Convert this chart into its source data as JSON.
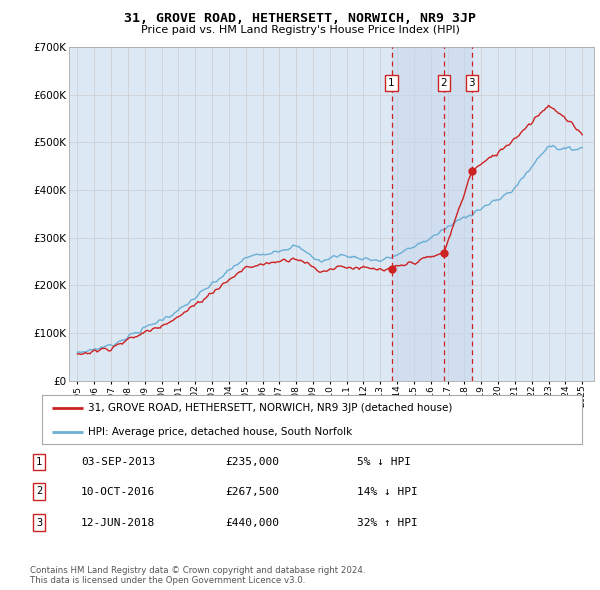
{
  "title": "31, GROVE ROAD, HETHERSETT, NORWICH, NR9 3JP",
  "subtitle": "Price paid vs. HM Land Registry's House Price Index (HPI)",
  "background_color": "#ffffff",
  "plot_bg_color": "#dce9f5",
  "grid_color": "#cccccc",
  "ylim": [
    0,
    700000
  ],
  "yticks": [
    0,
    100000,
    200000,
    300000,
    400000,
    500000,
    600000,
    700000
  ],
  "ytick_labels": [
    "£0",
    "£100K",
    "£200K",
    "£300K",
    "£400K",
    "£500K",
    "£600K",
    "£700K"
  ],
  "sale_decimal": [
    2013.672,
    2016.778,
    2018.444
  ],
  "sale_prices": [
    235000,
    267500,
    440000
  ],
  "sale_labels": [
    "1",
    "2",
    "3"
  ],
  "legend_entries": [
    "31, GROVE ROAD, HETHERSETT, NORWICH, NR9 3JP (detached house)",
    "HPI: Average price, detached house, South Norfolk"
  ],
  "table_rows": [
    [
      "1",
      "03-SEP-2013",
      "£235,000",
      "5% ↓ HPI"
    ],
    [
      "2",
      "10-OCT-2016",
      "£267,500",
      "14% ↓ HPI"
    ],
    [
      "3",
      "12-JUN-2018",
      "£440,000",
      "32% ↑ HPI"
    ]
  ],
  "footer": "Contains HM Land Registry data © Crown copyright and database right 2024.\nThis data is licensed under the Open Government Licence v3.0.",
  "hpi_color": "#6baed6",
  "price_color": "#cc2222",
  "vline_color": "#cc2222",
  "shade_color": "#c8d8ee"
}
